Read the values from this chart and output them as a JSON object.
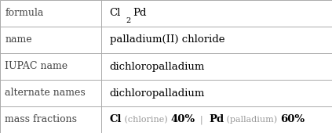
{
  "rows": [
    {
      "label": "formula",
      "value": "formula_special"
    },
    {
      "label": "name",
      "value": "palladium(II) chloride"
    },
    {
      "label": "IUPAC name",
      "value": "dichloropalladium"
    },
    {
      "label": "alternate names",
      "value": "dichloropalladium"
    },
    {
      "label": "mass fractions",
      "value": "mass_fractions_special"
    }
  ],
  "col_split": 0.305,
  "bg_color": "#ffffff",
  "border_color": "#aaaaaa",
  "label_color": "#444444",
  "value_color": "#000000",
  "label_fontsize": 9.0,
  "value_fontsize": 9.5,
  "font_family": "DejaVu Serif",
  "mass_fraction_cl_label": "Cl",
  "mass_fraction_cl_desc": " (chlorine) ",
  "mass_fraction_cl_pct": "40%",
  "mass_fraction_sep": "  |  ",
  "mass_fraction_pd_label": "Pd",
  "mass_fraction_pd_desc": " (palladium) ",
  "mass_fraction_pd_pct": "60%",
  "element_color": "#000000",
  "desc_color": "#999999",
  "pct_color": "#000000",
  "formula_main": "Cl",
  "formula_sub": "2",
  "formula_end": "Pd"
}
